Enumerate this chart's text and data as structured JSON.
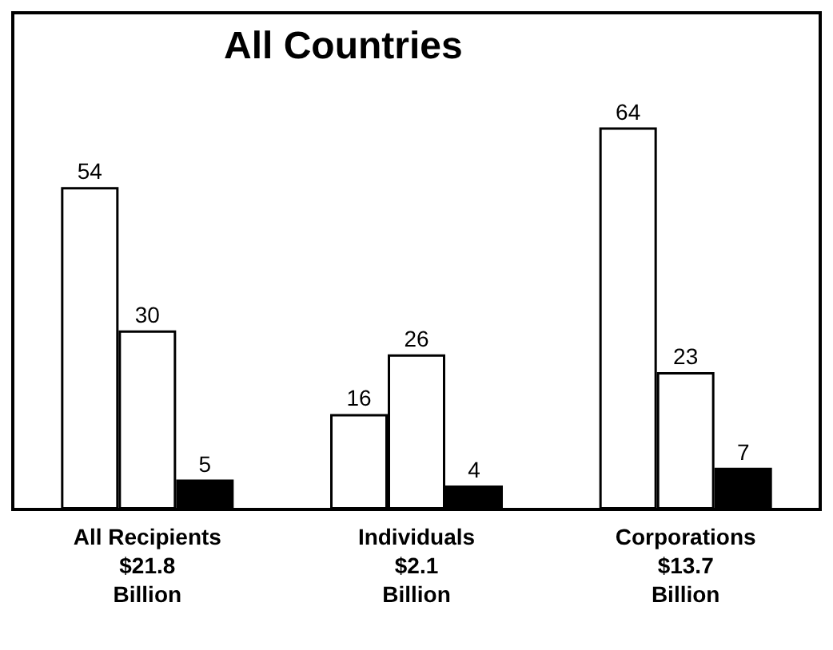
{
  "chart_data": {
    "type": "bar",
    "title": "All Countries",
    "categories": [
      "All Recipients\n$21.8\nBillion",
      "Individuals\n$2.1\nBillion",
      "Corporations\n$13.7\nBillion"
    ],
    "series": [
      {
        "color": "#ffffff",
        "values": [
          54,
          16,
          64
        ]
      },
      {
        "color": "#ffffff",
        "values": [
          30,
          26,
          23
        ]
      },
      {
        "color": "#000000",
        "values": [
          5,
          4,
          7
        ]
      }
    ],
    "data_labels": true
  }
}
